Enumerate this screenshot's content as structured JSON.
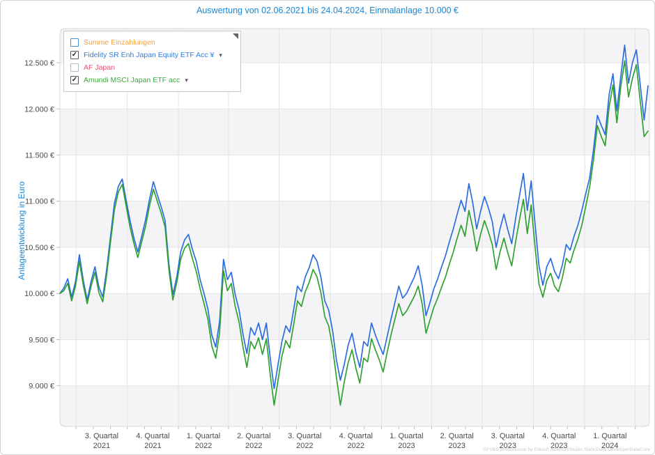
{
  "title": "Auswertung von 02.06.2021 bis 24.04.2024, Einmalanlage 10.000 €",
  "footer": "©FVBS professional by Edisoft.AdvisorsStudio.StaticData.DeveloperDataCore",
  "colors": {
    "title_blue": "#1b87d4",
    "gridline": "#e4e4e8",
    "band": "#f4f4f6",
    "plot_border": "#d8d8dc",
    "tick": "#b9b9be"
  },
  "legend": {
    "items": [
      {
        "label": "Summe Einzahlungen",
        "color": "#f7a23d",
        "checked": false,
        "check_glyph": "",
        "box_border": "#4a90d8",
        "has_dropdown": false
      },
      {
        "label": "Fidelity SR Enh Japan Equity ETF Acc ¥",
        "color": "#2e7de2",
        "checked": true,
        "check_glyph": "✓",
        "box_border": "#5a5a5e",
        "has_dropdown": true,
        "dropdown_glyph": "▾"
      },
      {
        "label": "AF Japan",
        "color": "#e65573",
        "checked": false,
        "check_glyph": "",
        "box_border": "#b4bac2",
        "has_dropdown": false
      },
      {
        "label": "Amundi MSCI Japan ETF acc",
        "color": "#3da83d",
        "checked": true,
        "check_glyph": "✓",
        "box_border": "#5a5a5e",
        "has_dropdown": true,
        "dropdown_glyph": "▾"
      }
    ]
  },
  "chart_data": {
    "type": "line",
    "title": "Auswertung von 02.06.2021 bis 24.04.2024, Einmalanlage 10.000 €",
    "xlabel": "",
    "ylabel": "Anlageentwicklung in Euro",
    "start_date": "2021-06-02",
    "end_date": "2024-04-24",
    "sample_interval_days": 7,
    "grid": true,
    "alternating_bands": true,
    "legend_position": "top-left",
    "ylim": [
      8560,
      12870
    ],
    "yticks": [
      {
        "value": 12500,
        "label": "12.500 €"
      },
      {
        "value": 12000,
        "label": "12.000 €"
      },
      {
        "value": 11500,
        "label": "11.500 €"
      },
      {
        "value": 11000,
        "label": "11.000 €"
      },
      {
        "value": 10500,
        "label": "10.500 €"
      },
      {
        "value": 10000,
        "label": "10.000 €"
      },
      {
        "value": 9500,
        "label": "9.500 €"
      },
      {
        "value": 9000,
        "label": "9.000 €"
      }
    ],
    "x_quarter_boundaries": [
      "2021-07-01",
      "2021-10-01",
      "2022-01-01",
      "2022-04-01",
      "2022-07-01",
      "2022-10-01",
      "2023-01-01",
      "2023-04-01",
      "2023-07-01",
      "2023-10-01",
      "2024-01-01",
      "2024-04-01"
    ],
    "xticklabels": [
      {
        "quarter": "3. Quartal",
        "year": "2021"
      },
      {
        "quarter": "4. Quartal",
        "year": "2021"
      },
      {
        "quarter": "1. Quartal",
        "year": "2022"
      },
      {
        "quarter": "2. Quartal",
        "year": "2022"
      },
      {
        "quarter": "3. Quartal",
        "year": "2022"
      },
      {
        "quarter": "4. Quartal",
        "year": "2022"
      },
      {
        "quarter": "1. Quartal",
        "year": "2023"
      },
      {
        "quarter": "2. Quartal",
        "year": "2023"
      },
      {
        "quarter": "3. Quartal",
        "year": "2023"
      },
      {
        "quarter": "4. Quartal",
        "year": "2023"
      },
      {
        "quarter": "1. Quartal",
        "year": "2024"
      }
    ],
    "series": [
      {
        "id": "fidelity",
        "name": "Fidelity SR Enh Japan Equity ETF Acc ¥",
        "color": "#2c6ce2",
        "visible": true,
        "values": [
          10000,
          10060,
          10160,
          9960,
          10130,
          10420,
          10140,
          9930,
          10130,
          10290,
          10070,
          9960,
          10260,
          10620,
          10980,
          11160,
          11240,
          11010,
          10790,
          10600,
          10450,
          10620,
          10800,
          11020,
          11210,
          11070,
          10940,
          10790,
          10310,
          9990,
          10180,
          10450,
          10580,
          10640,
          10480,
          10350,
          10150,
          10000,
          9830,
          9550,
          9420,
          9700,
          10370,
          10150,
          10230,
          9990,
          9820,
          9560,
          9350,
          9630,
          9550,
          9680,
          9500,
          9680,
          9300,
          8970,
          9230,
          9480,
          9650,
          9580,
          9820,
          10080,
          10020,
          10180,
          10280,
          10420,
          10350,
          10180,
          9920,
          9820,
          9600,
          9280,
          9060,
          9230,
          9440,
          9570,
          9360,
          9200,
          9480,
          9430,
          9680,
          9550,
          9440,
          9340,
          9530,
          9720,
          9900,
          10080,
          9950,
          10000,
          10090,
          10180,
          10300,
          10090,
          9760,
          9900,
          10050,
          10160,
          10290,
          10410,
          10560,
          10700,
          10860,
          11010,
          10890,
          11190,
          10980,
          10700,
          10890,
          11050,
          10930,
          10780,
          10500,
          10700,
          10860,
          10690,
          10540,
          10810,
          11060,
          11300,
          10900,
          11220,
          10750,
          10300,
          10090,
          10290,
          10380,
          10240,
          10160,
          10310,
          10530,
          10470,
          10620,
          10740,
          10900,
          11080,
          11250,
          11560,
          11930,
          11820,
          11720,
          12150,
          12380,
          11980,
          12350,
          12690,
          12280,
          12500,
          12640,
          12260,
          11880,
          12250
        ]
      },
      {
        "id": "amundi",
        "name": "Amundi MSCI Japan ETF acc",
        "color": "#2ea12e",
        "visible": true,
        "values": [
          10000,
          10030,
          10110,
          9920,
          10080,
          10350,
          10090,
          9890,
          10080,
          10230,
          10010,
          9910,
          10200,
          10560,
          10910,
          11100,
          11180,
          10950,
          10720,
          10540,
          10390,
          10560,
          10730,
          10950,
          11130,
          11000,
          10870,
          10720,
          10250,
          9930,
          10120,
          10370,
          10490,
          10540,
          10380,
          10240,
          10050,
          9890,
          9720,
          9430,
          9300,
          9580,
          10250,
          10030,
          10110,
          9860,
          9690,
          9420,
          9200,
          9480,
          9400,
          9520,
          9340,
          9510,
          9120,
          8790,
          9060,
          9320,
          9490,
          9410,
          9660,
          9920,
          9860,
          10020,
          10120,
          10260,
          10180,
          10010,
          9750,
          9650,
          9420,
          9090,
          8790,
          9040,
          9250,
          9390,
          9190,
          9030,
          9300,
          9260,
          9510,
          9390,
          9280,
          9150,
          9360,
          9550,
          9720,
          9890,
          9760,
          9810,
          9890,
          9970,
          10080,
          9890,
          9570,
          9710,
          9850,
          9950,
          10070,
          10180,
          10320,
          10450,
          10600,
          10740,
          10620,
          10900,
          10710,
          10460,
          10640,
          10790,
          10670,
          10530,
          10260,
          10450,
          10600,
          10440,
          10300,
          10560,
          10800,
          11020,
          10650,
          10960,
          10500,
          10100,
          9960,
          10140,
          10220,
          10080,
          10020,
          10170,
          10380,
          10330,
          10470,
          10590,
          10740,
          10940,
          11150,
          11450,
          11820,
          11700,
          11600,
          12020,
          12260,
          11850,
          12240,
          12520,
          12130,
          12330,
          12480,
          12080,
          11700,
          11760
        ]
      },
      {
        "id": "summe-einzahlungen",
        "name": "Summe Einzahlungen",
        "color": "#f7a23d",
        "visible": false,
        "values": []
      },
      {
        "id": "af-japan",
        "name": "AF Japan",
        "color": "#e65573",
        "visible": false,
        "values": []
      }
    ]
  }
}
